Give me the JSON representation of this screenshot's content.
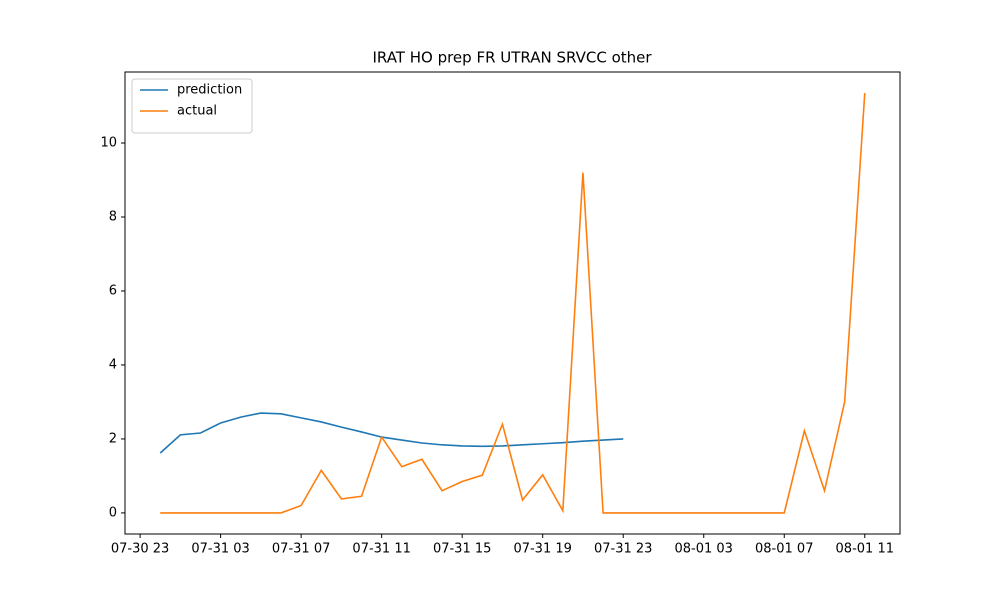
{
  "chart_data": {
    "type": "line",
    "title": "IRAT HO prep FR UTRAN SRVCC other",
    "x": [
      "07-31 00",
      "07-31 01",
      "07-31 02",
      "07-31 03",
      "07-31 04",
      "07-31 05",
      "07-31 06",
      "07-31 07",
      "07-31 08",
      "07-31 09",
      "07-31 10",
      "07-31 11",
      "07-31 12",
      "07-31 13",
      "07-31 14",
      "07-31 15",
      "07-31 16",
      "07-31 17",
      "07-31 18",
      "07-31 19",
      "07-31 20",
      "07-31 21",
      "07-31 22",
      "07-31 23",
      "08-01 00",
      "08-01 01",
      "08-01 02",
      "08-01 03",
      "08-01 04",
      "08-01 05",
      "08-01 06",
      "08-01 07",
      "08-01 08",
      "08-01 09",
      "08-01 10",
      "08-01 11"
    ],
    "series": [
      {
        "name": "prediction",
        "color": "#1f77b4",
        "values": [
          1.62,
          2.11,
          2.16,
          2.43,
          2.59,
          2.7,
          2.68,
          2.57,
          2.46,
          2.32,
          2.19,
          2.05,
          1.97,
          1.89,
          1.84,
          1.81,
          1.8,
          1.81,
          1.84,
          1.87,
          1.9,
          1.94,
          1.97,
          2.0,
          null,
          null,
          null,
          null,
          null,
          null,
          null,
          null,
          null,
          null,
          null,
          null
        ]
      },
      {
        "name": "actual",
        "color": "#ff7f0e",
        "values": [
          0,
          0,
          0,
          0,
          0,
          0,
          0,
          0.2,
          1.15,
          0.38,
          0.45,
          2.05,
          1.25,
          1.45,
          0.6,
          0.85,
          1.02,
          2.4,
          0.35,
          1.03,
          0.06,
          9.2,
          0,
          0,
          0,
          0,
          0,
          0,
          0,
          0,
          0,
          0,
          2.22,
          0.6,
          3.0,
          11.35
        ]
      }
    ],
    "xlim": [
      "07-30 22:15",
      "08-01 12:45"
    ],
    "xticks": [
      "07-30 23",
      "07-31 03",
      "07-31 07",
      "07-31 11",
      "07-31 15",
      "07-31 19",
      "07-31 23",
      "08-01 03",
      "08-01 07",
      "08-01 11"
    ],
    "ylim": [
      -0.57,
      11.92
    ],
    "yticks": [
      0,
      2,
      4,
      6,
      8,
      10
    ],
    "legend": "upper left"
  }
}
